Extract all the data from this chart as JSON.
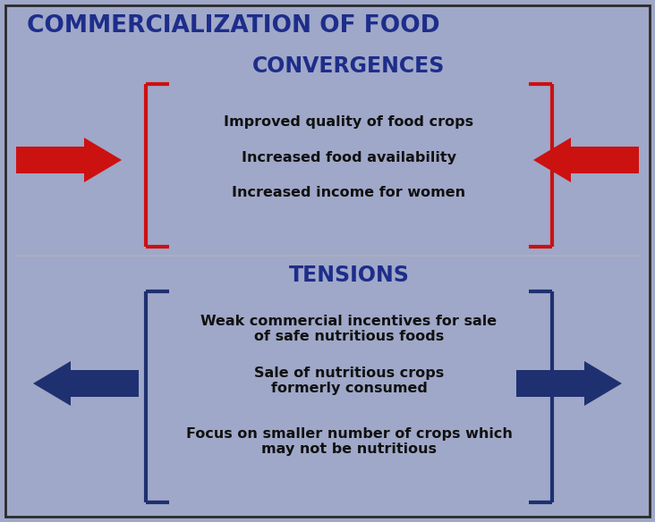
{
  "title": "COMMERCIALIZATION OF FOOD",
  "title_color": "#1e2d8a",
  "background_color": "#9fa8c8",
  "border_color": "#2a2a2a",
  "section1_label": "CONVERGENCES",
  "section1_color": "#1e2d8a",
  "section1_items": [
    "Improved quality of food crops",
    "Increased food availability",
    "Increased income for women"
  ],
  "section2_label": "TENSIONS",
  "section2_color": "#1e2d8a",
  "section2_items": [
    "Weak commercial incentives for sale\nof safe nutritious foods",
    "Sale of nutritious crops\nformerly consumed",
    "Focus on smaller number of crops which\nmay not be nutritious"
  ],
  "bracket_color_top": "#cc1111",
  "bracket_color_bottom": "#1e3070",
  "arrow_color_top": "#cc1111",
  "arrow_color_bottom": "#1e3070",
  "divider_color": "#b0b0b8",
  "text_color": "#111111"
}
